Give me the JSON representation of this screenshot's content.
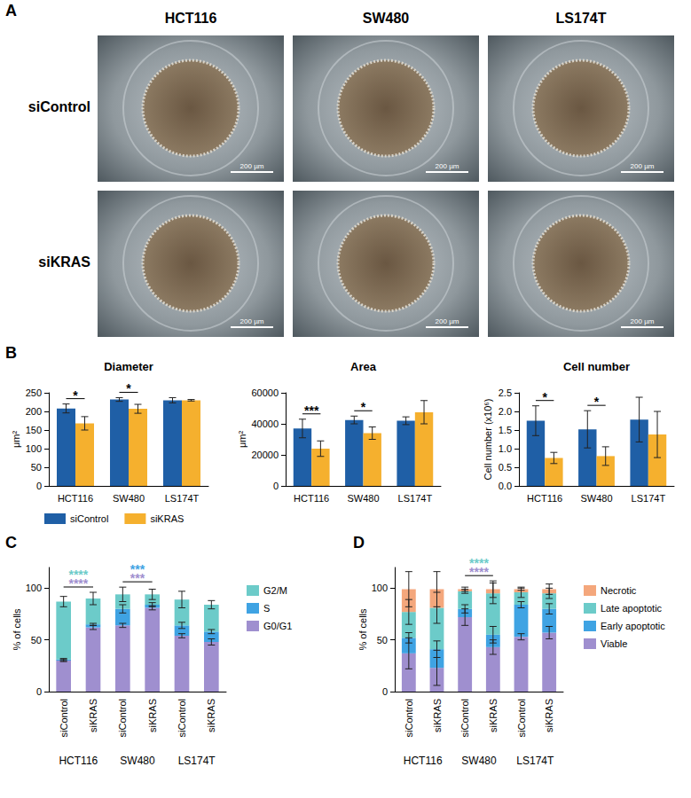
{
  "image_panel": {
    "letter": "A",
    "columns": [
      "HCT116",
      "SW480",
      "LS174T"
    ],
    "rows": [
      "siControl",
      "siKRAS"
    ],
    "scale_bar": "200 µm"
  },
  "chart_data": [
    {
      "panel": "B",
      "type": "bar",
      "title": "Diameter",
      "y_label": "μm²",
      "categories": [
        "HCT116",
        "SW480",
        "LS174T"
      ],
      "series": [
        {
          "name": "siControl",
          "color": "#1f5fa6",
          "values": [
            208,
            232,
            230
          ],
          "errors": [
            12,
            5,
            7
          ]
        },
        {
          "name": "siKRAS",
          "color": "#f5b02e",
          "values": [
            168,
            207,
            230
          ],
          "errors": [
            18,
            12,
            2
          ]
        }
      ],
      "ylim": [
        0,
        250
      ],
      "yticks": [
        0,
        50,
        100,
        150,
        200,
        250
      ],
      "grid": false,
      "legend": "bottom",
      "annotations": [
        {
          "group": "HCT116",
          "text": "*"
        },
        {
          "group": "SW480",
          "text": "*"
        }
      ]
    },
    {
      "type": "bar",
      "title": "Area",
      "y_label": "μm²",
      "categories": [
        "HCT116",
        "SW480",
        "LS174T"
      ],
      "series": [
        {
          "name": "siControl",
          "color": "#1f5fa6",
          "values": [
            37000,
            42500,
            42000
          ],
          "errors": [
            6000,
            2500,
            2500
          ]
        },
        {
          "name": "siKRAS",
          "color": "#f5b02e",
          "values": [
            24000,
            34000,
            47500
          ],
          "errors": [
            5000,
            4000,
            7500
          ]
        }
      ],
      "ylim": [
        0,
        60000
      ],
      "yticks": [
        0,
        20000,
        40000,
        60000
      ],
      "grid": false,
      "annotations": [
        {
          "group": "HCT116",
          "text": "***"
        },
        {
          "group": "SW480",
          "text": "*"
        }
      ]
    },
    {
      "type": "bar",
      "title": "Cell number",
      "y_label": "Cell number (x10⁶)",
      "categories": [
        "HCT116",
        "SW480",
        "LS174T"
      ],
      "series": [
        {
          "name": "siControl",
          "color": "#1f5fa6",
          "values": [
            1.75,
            1.52,
            1.78
          ],
          "errors": [
            0.4,
            0.5,
            0.6
          ]
        },
        {
          "name": "siKRAS",
          "color": "#f5b02e",
          "values": [
            0.75,
            0.8,
            1.38
          ],
          "errors": [
            0.15,
            0.25,
            0.62
          ]
        }
      ],
      "ylim": [
        0,
        2.5
      ],
      "yticks": [
        {
          "value": 0,
          "label": "0.0"
        },
        0.5,
        {
          "value": 1,
          "label": "1.0"
        },
        1.5,
        {
          "value": 2,
          "label": "2.0"
        },
        2.5
      ],
      "grid": false,
      "annotations": [
        {
          "group": "HCT116",
          "text": "*"
        },
        {
          "group": "SW480",
          "text": "*"
        }
      ]
    },
    {
      "panel": "C",
      "type": "bar",
      "stacked": true,
      "y_label": "% of cells",
      "categories": [
        "siControl",
        "siKRAS",
        "siControl",
        "siKRAS",
        "siControl",
        "siKRAS"
      ],
      "groups": [
        "HCT116",
        "SW480",
        "LS174T"
      ],
      "series": [
        {
          "name": "G0/G1",
          "color": "#9f8fcf",
          "values": [
            30,
            62,
            64,
            81,
            54,
            48
          ],
          "errors": [
            1,
            2,
            2,
            2,
            2,
            3
          ]
        },
        {
          "name": "S",
          "color": "#3fa3e3",
          "values": [
            1,
            3,
            16,
            3,
            10,
            10
          ],
          "errors": [
            1,
            1,
            4,
            2,
            3,
            2
          ]
        },
        {
          "name": "G2/M",
          "color": "#6ccbc9",
          "values": [
            56,
            25,
            14,
            10,
            25,
            26
          ],
          "errors": [
            5,
            6,
            7,
            5,
            8,
            4
          ]
        }
      ],
      "ylim": [
        0,
        120
      ],
      "yticks": [
        0,
        50,
        100
      ],
      "grid": false,
      "legend": "right",
      "annotations": [
        {
          "group": "HCT116",
          "series": "G2/M",
          "text": "****"
        },
        {
          "group": "HCT116",
          "series": "G0/G1",
          "text": "****"
        },
        {
          "group": "SW480",
          "series": "S",
          "text": "***"
        },
        {
          "group": "SW480",
          "series": "G0/G1",
          "text": "***"
        }
      ]
    },
    {
      "panel": "D",
      "type": "bar",
      "stacked": true,
      "y_label": "% of cells",
      "categories": [
        "siControl",
        "siKRAS",
        "siControl",
        "siKRAS",
        "siControl",
        "siKRAS"
      ],
      "groups": [
        "HCT116",
        "SW480",
        "LS174T"
      ],
      "series": [
        {
          "name": "Viable",
          "color": "#9f8fcf",
          "values": [
            37,
            23,
            72,
            43,
            53,
            57
          ],
          "errors": [
            15,
            17,
            8,
            7,
            3,
            6
          ]
        },
        {
          "name": "Early apoptotic",
          "color": "#3fa3e3",
          "values": [
            15,
            18,
            8,
            12,
            31,
            23
          ],
          "errors": [
            5,
            8,
            4,
            8,
            3,
            5
          ]
        },
        {
          "name": "Late apoptotic",
          "color": "#6ccbc9",
          "values": [
            25,
            40,
            17,
            40,
            12,
            15
          ],
          "errors": [
            12,
            15,
            2,
            10,
            5,
            5
          ]
        },
        {
          "name": "Necrotic",
          "color": "#f4a77c",
          "values": [
            22,
            18,
            2,
            4,
            3,
            4
          ],
          "errors": [
            17,
            17,
            2,
            8,
            1,
            5
          ]
        }
      ],
      "ylim": [
        0,
        120
      ],
      "yticks": [
        0,
        50,
        100
      ],
      "grid": false,
      "legend": "right",
      "annotations": [
        {
          "group": "SW480",
          "series": "Late apoptotic",
          "text": "****"
        },
        {
          "group": "SW480",
          "series": "Viable",
          "text": "****"
        }
      ]
    }
  ]
}
